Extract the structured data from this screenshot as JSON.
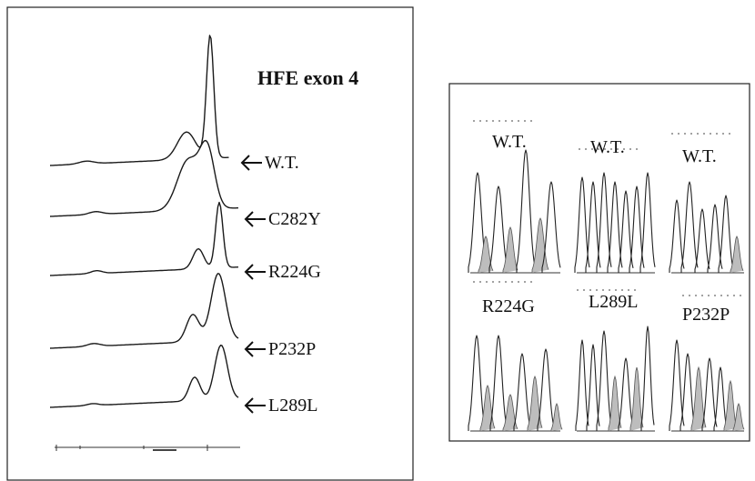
{
  "dhplc_panel": {
    "title": "HFE exon 4",
    "traces": [
      {
        "label": "W.T."
      },
      {
        "label": "C282Y"
      },
      {
        "label": "R224G"
      },
      {
        "label": "P232P"
      },
      {
        "label": "L289L"
      }
    ]
  },
  "sequencing_panel": {
    "top_labels": [
      "W.T.",
      "W.T.",
      "W.T."
    ],
    "bottom_labels": [
      "R224G",
      "L289L",
      "P232P"
    ]
  },
  "colors": {
    "ink": "#1a1a1a",
    "frame": "#222222",
    "peak_fill": "#bdbdbd"
  }
}
